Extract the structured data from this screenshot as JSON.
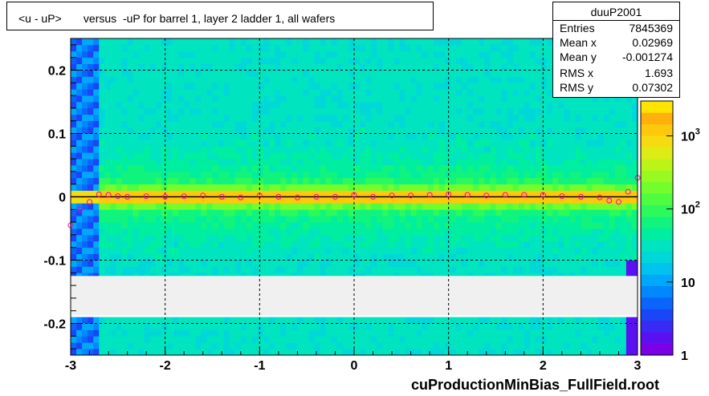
{
  "chart_data": {
    "type": "heatmap",
    "title": "<u - uP>       versus  -uP for barrel 1, layer 2 ladder 1, all wafers",
    "footer": "cuProductionMinBias_FullField.root",
    "xlim": [
      -3,
      3
    ],
    "ylim": [
      -0.25,
      0.25
    ],
    "x_ticks": [
      -3,
      -2,
      -1,
      0,
      1,
      2,
      3
    ],
    "y_ticks": [
      -0.2,
      -0.1,
      0,
      0.1,
      0.2
    ],
    "y_tick_labels": [
      "-0.2",
      "-0.1",
      "0",
      "0.1",
      "0.2"
    ],
    "grid": true,
    "empty_band_y": [
      -0.187,
      -0.125
    ],
    "z_scale": "log",
    "z_range": [
      1,
      3000
    ],
    "z_ticks": [
      {
        "label": "1",
        "value": 1
      },
      {
        "label": "10",
        "value": 10
      },
      {
        "label": "10",
        "exp": "2",
        "value": 100
      },
      {
        "label": "10",
        "exp": "3",
        "value": 1000
      }
    ],
    "palette": [
      "#7a00e6",
      "#5a10f0",
      "#3a2af5",
      "#1a46f8",
      "#0a66fb",
      "#0088fc",
      "#00a8fa",
      "#00c4ee",
      "#00d8d8",
      "#00e4bf",
      "#00eea0",
      "#10f47e",
      "#2cfa5c",
      "#4efc40",
      "#74fc2c",
      "#98fa20",
      "#bcf418",
      "#dcec14",
      "#f4dc10",
      "#ffc80c",
      "#ffb00c",
      "#ffe400"
    ],
    "profile": {
      "x": [
        -3.0,
        -2.9,
        -2.8,
        -2.7,
        -2.6,
        -2.5,
        -2.4,
        -2.2,
        -2.0,
        -1.8,
        -1.6,
        -1.4,
        -1.2,
        -1.0,
        -0.8,
        -0.6,
        -0.4,
        -0.2,
        0.0,
        0.2,
        0.4,
        0.6,
        0.8,
        1.0,
        1.2,
        1.4,
        1.6,
        1.8,
        2.0,
        2.2,
        2.4,
        2.6,
        2.7,
        2.8,
        2.9,
        3.0
      ],
      "y": [
        -0.045,
        -0.02,
        -0.008,
        0.004,
        0.003,
        0.001,
        0.0,
        0.001,
        0.0,
        0.001,
        0.002,
        0.0,
        -0.001,
        0.002,
        0.0,
        -0.001,
        0.0,
        0.0,
        0.003,
        0.0,
        0.002,
        0.002,
        0.003,
        0.004,
        0.003,
        0.002,
        0.003,
        0.003,
        0.003,
        0.001,
        0.0,
        -0.001,
        -0.006,
        -0.008,
        0.008,
        0.03
      ]
    },
    "stats": {
      "name": "duuP2001",
      "rows": [
        {
          "key": "Entries",
          "value": "7845369"
        },
        {
          "key": "Mean x",
          "value": "0.02969"
        },
        {
          "key": "Mean y",
          "value": "-0.001274"
        },
        {
          "key": "RMS x",
          "value": "1.693"
        },
        {
          "key": "RMS y",
          "value": "0.07302"
        }
      ]
    }
  }
}
